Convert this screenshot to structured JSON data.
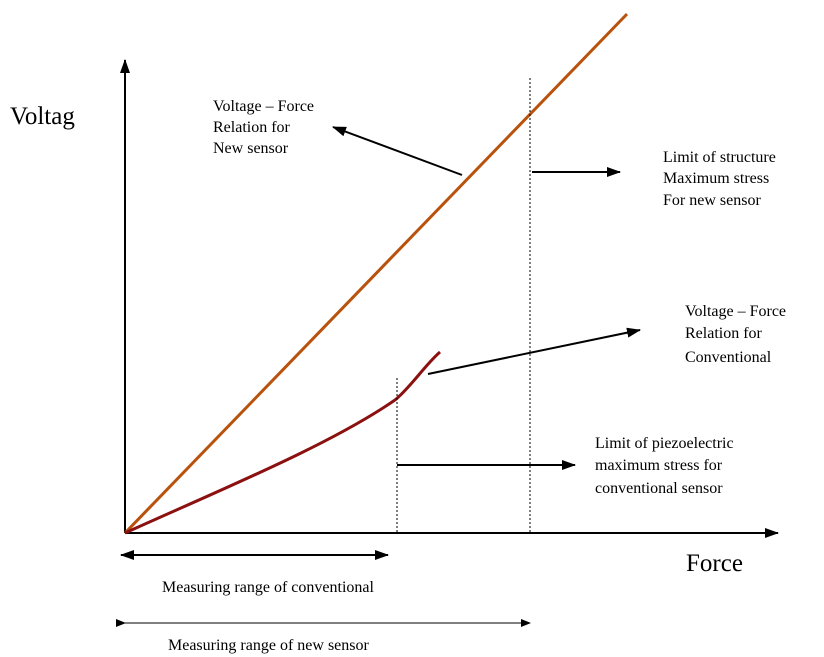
{
  "axes": {
    "y_label": "Voltag",
    "x_label": "Force"
  },
  "annotations": {
    "new_relation": [
      "Voltage – Force",
      "Relation for",
      "New sensor"
    ],
    "structure_limit": [
      "Limit of structure",
      "Maximum stress",
      "For new sensor"
    ],
    "conventional_relation": [
      "Voltage – Force",
      "Relation for",
      "Conventional"
    ],
    "piezo_limit": [
      "Limit of piezoelectric",
      "maximum stress for",
      "conventional sensor"
    ],
    "range_conventional": "Measuring range of conventional",
    "range_new": "Measuring range of new sensor"
  }
}
